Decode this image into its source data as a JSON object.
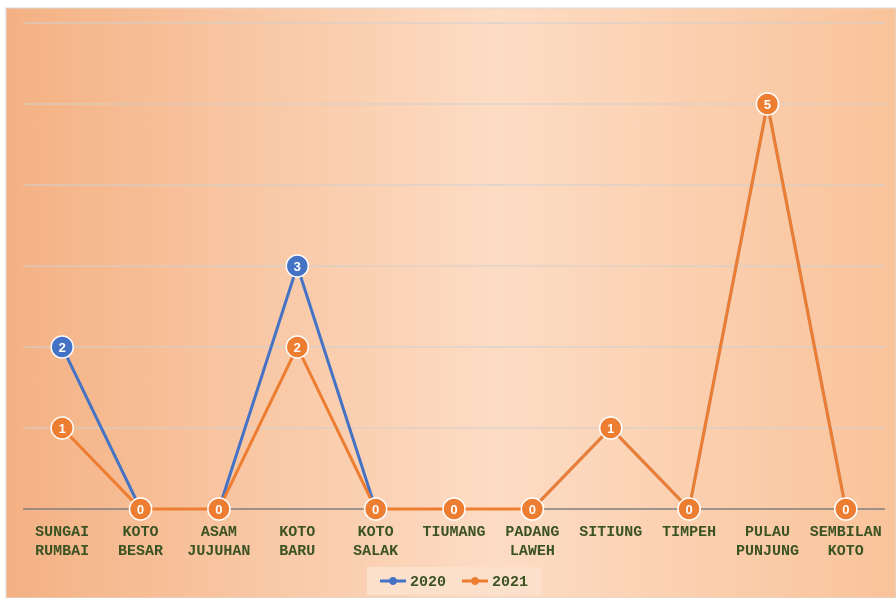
{
  "chart_data": {
    "type": "line",
    "categories": [
      [
        "SUNGAI",
        "RUMBAI"
      ],
      [
        "KOTO",
        "BESAR"
      ],
      [
        "ASAM",
        "JUJUHAN"
      ],
      [
        "KOTO",
        "BARU"
      ],
      [
        "KOTO",
        "SALAK"
      ],
      [
        "TIUMANG"
      ],
      [
        "PADANG",
        "LAWEH"
      ],
      [
        "SITIUNG"
      ],
      [
        "TIMPEH"
      ],
      [
        "PULAU",
        "PUNJUNG"
      ],
      [
        "SEMBILAN",
        "KOTO"
      ]
    ],
    "series": [
      {
        "name": "2020",
        "color": "#4472c4",
        "values": [
          2,
          0,
          0,
          3,
          0,
          0,
          0,
          1,
          0,
          5,
          0
        ]
      },
      {
        "name": "2021",
        "color": "#ed7d31",
        "values": [
          1,
          0,
          0,
          2,
          0,
          0,
          0,
          1,
          0,
          5,
          0
        ]
      }
    ],
    "ylim": [
      0,
      6
    ],
    "yticks": [
      0,
      1,
      2,
      3,
      4,
      5,
      6
    ],
    "grid": true,
    "legend": "bottom"
  }
}
